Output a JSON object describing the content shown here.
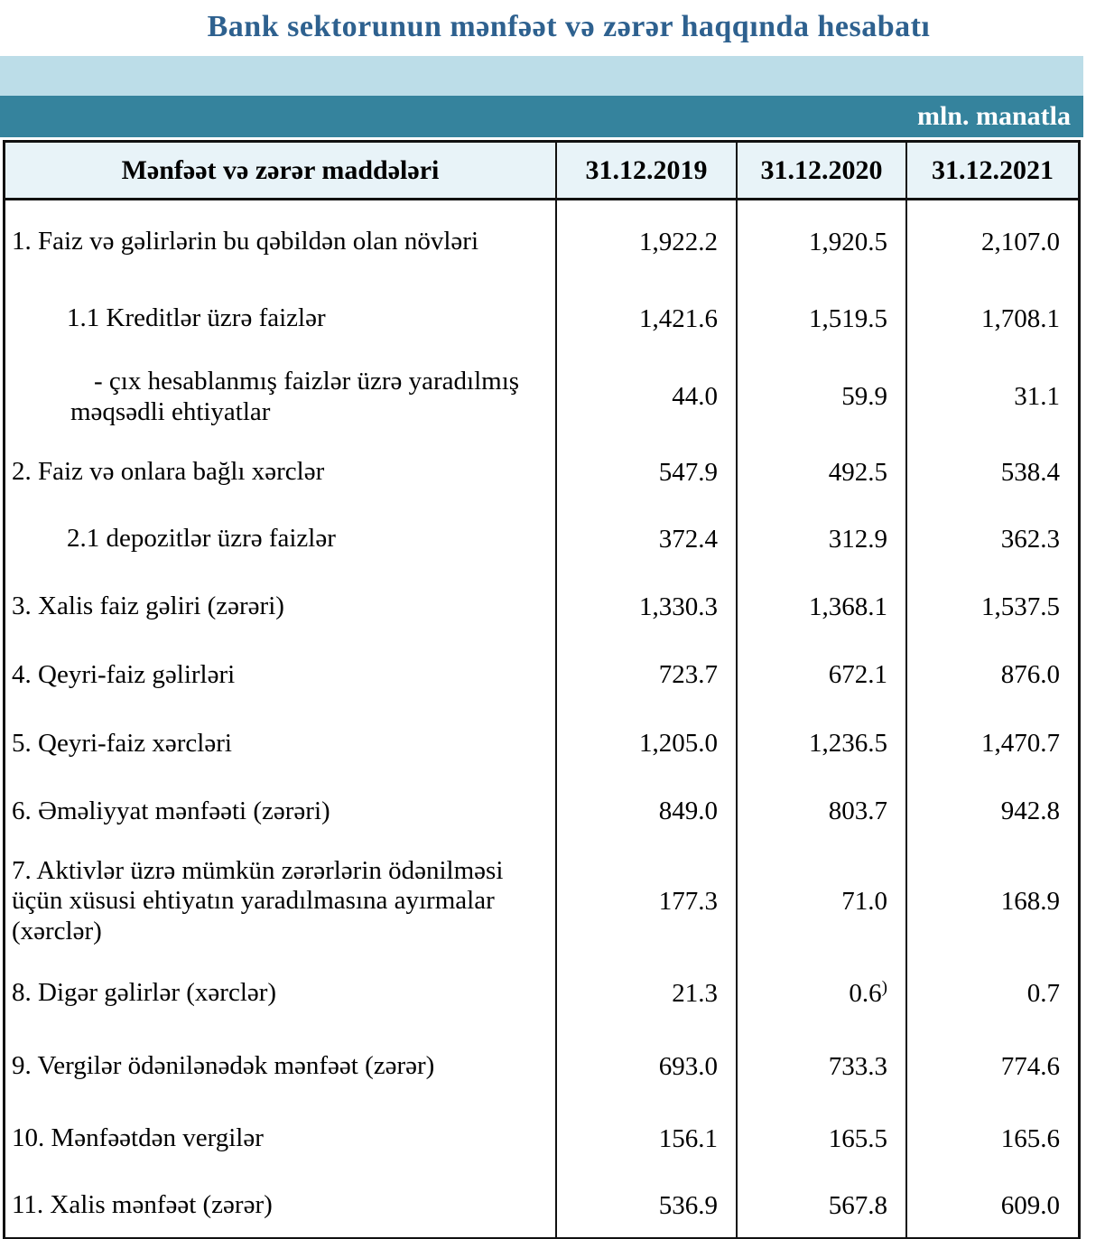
{
  "title": "Bank sektorunun mənfəət və zərər haqqında hesabatı",
  "unit_label": "mln. manatla",
  "colors": {
    "title_text": "#2e618f",
    "band_light": "#bcdde8",
    "band_teal": "#35839d",
    "header_bg": "#e8f3f8",
    "border": "#111111"
  },
  "table": {
    "header": {
      "label": "Mənfəət və zərər maddələri",
      "columns": [
        "31.12.2019",
        "31.12.2020",
        "31.12.2021"
      ]
    },
    "rows": [
      {
        "label": "1. Faiz və gəlirlərin bu qəbildən olan növləri",
        "indent": 0,
        "values": [
          "1,922.2",
          "1,920.5",
          "2,107.0"
        ]
      },
      {
        "label": "1.1 Kreditlər üzrə faizlər",
        "indent": 1,
        "values": [
          "1,421.6",
          "1,519.5",
          "1,708.1"
        ]
      },
      {
        "label": "-  çıx hesablanmış faizlər üzrə yaradılmış məqsədli ehtiyatlar",
        "indent": 2,
        "values": [
          "44.0",
          "59.9",
          "31.1"
        ]
      },
      {
        "label": "2. Faiz və onlara bağlı xərclər",
        "indent": 0,
        "values": [
          "547.9",
          "492.5",
          "538.4"
        ]
      },
      {
        "label": "2.1 depozitlər üzrə faizlər",
        "indent": 1,
        "values": [
          "372.4",
          "312.9",
          "362.3"
        ]
      },
      {
        "label": "3. Xalis faiz gəliri (zərəri)",
        "indent": 0,
        "values": [
          "1,330.3",
          "1,368.1",
          "1,537.5"
        ]
      },
      {
        "label": "4. Qeyri-faiz gəlirləri",
        "indent": 0,
        "values": [
          "723.7",
          "672.1",
          "876.0"
        ]
      },
      {
        "label": "5. Qeyri-faiz xərcləri",
        "indent": 0,
        "values": [
          "1,205.0",
          "1,236.5",
          "1,470.7"
        ]
      },
      {
        "label": "6. Əməliyyat mənfəəti (zərəri)",
        "indent": 0,
        "values": [
          "849.0",
          "803.7",
          "942.8"
        ]
      },
      {
        "label": "7. Aktivlər üzrə mümkün zərərlərin ödənilməsi üçün xüsusi ehtiyatın yaradılmasına ayırmalar (xərclər)",
        "indent": 0,
        "values": [
          "177.3",
          "71.0",
          "168.9"
        ]
      },
      {
        "label": "8. Digər gəlirlər (xərclər)",
        "indent": 0,
        "values": [
          "21.3",
          "0.6",
          "0.7"
        ],
        "marks": [
          null,
          ")",
          null
        ]
      },
      {
        "label": "9. Vergilər ödənilənədək mənfəət (zərər)",
        "indent": 0,
        "values": [
          "693.0",
          "733.3",
          "774.6"
        ]
      },
      {
        "label": "10. Mənfəətdən vergilər",
        "indent": 0,
        "values": [
          "156.1",
          "165.5",
          "165.6"
        ]
      },
      {
        "label": "11. Xalis mənfəət (zərər)",
        "indent": 0,
        "values": [
          "536.9",
          "567.8",
          "609.0"
        ]
      }
    ]
  },
  "chart_data": {
    "type": "table",
    "title": "Bank sektorunun mənfəət və zərər haqqında hesabatı",
    "unit": "mln. manatla",
    "columns": [
      "Mənfəət və zərər maddələri",
      "31.12.2019",
      "31.12.2020",
      "31.12.2021"
    ],
    "rows": [
      [
        "1. Faiz və gəlirlərin bu qəbildən olan növləri",
        1922.2,
        1920.5,
        2107.0
      ],
      [
        "1.1 Kreditlər üzrə faizlər",
        1421.6,
        1519.5,
        1708.1
      ],
      [
        "- çıx hesablanmış faizlər üzrə yaradılmış məqsədli ehtiyatlar",
        44.0,
        59.9,
        31.1
      ],
      [
        "2. Faiz və onlara bağlı xərclər",
        547.9,
        492.5,
        538.4
      ],
      [
        "2.1 depozitlər üzrə faizlər",
        372.4,
        312.9,
        362.3
      ],
      [
        "3. Xalis faiz gəliri (zərəri)",
        1330.3,
        1368.1,
        1537.5
      ],
      [
        "4. Qeyri-faiz gəlirləri",
        723.7,
        672.1,
        876.0
      ],
      [
        "5. Qeyri-faiz xərcləri",
        1205.0,
        1236.5,
        1470.7
      ],
      [
        "6. Əməliyyat mənfəəti (zərəri)",
        849.0,
        803.7,
        942.8
      ],
      [
        "7. Aktivlər üzrə mümkün zərərlərin ödənilməsi üçün xüsusi ehtiyatın yaradılmasına ayırmalar (xərclər)",
        177.3,
        71.0,
        168.9
      ],
      [
        "8. Digər gəlirlər (xərclər)",
        21.3,
        0.6,
        0.7
      ],
      [
        "9. Vergilər ödənilənədək mənfəət (zərər)",
        693.0,
        733.3,
        774.6
      ],
      [
        "10. Mənfəətdən vergilər",
        156.1,
        165.5,
        165.6
      ],
      [
        "11. Xalis mənfəət (zərər)",
        536.9,
        567.8,
        609.0
      ]
    ]
  }
}
